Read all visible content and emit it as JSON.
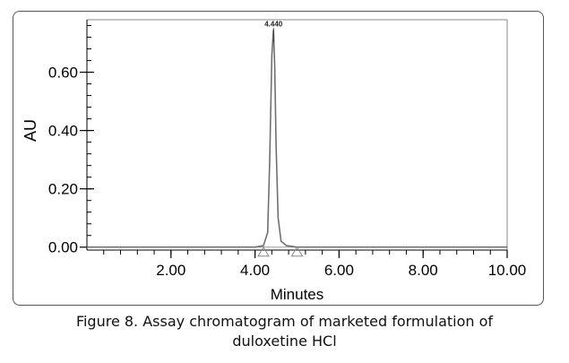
{
  "chart_data": {
    "type": "line",
    "title": "",
    "xlabel": "Minutes",
    "ylabel": "AU",
    "xlim": [
      0,
      10
    ],
    "ylim": [
      -0.01,
      0.78
    ],
    "x_ticks": [
      2,
      4,
      6,
      8,
      10
    ],
    "x_tick_labels": [
      "2.00",
      "4.00",
      "6.00",
      "8.00",
      "10.00"
    ],
    "y_ticks": [
      0,
      0.2,
      0.4,
      0.6
    ],
    "y_tick_labels": [
      "0.00",
      "0.20",
      "0.40",
      "0.60"
    ],
    "grid": false,
    "series": [
      {
        "x": [
          0,
          4.0,
          4.2,
          4.3,
          4.35,
          4.4,
          4.44,
          4.47,
          4.5,
          4.55,
          4.62,
          4.75,
          5.0,
          10.0
        ],
        "y": [
          0,
          0,
          0.005,
          0.05,
          0.3,
          0.66,
          0.745,
          0.62,
          0.35,
          0.1,
          0.02,
          0.005,
          0,
          0
        ]
      }
    ],
    "peak_label": {
      "x": 4.44,
      "y": 0.745,
      "text": "4.440"
    },
    "integration_marks": [
      4.2,
      5.0
    ]
  },
  "caption": {
    "line1": "Figure 8. Assay chromatogram of marketed formulation of",
    "line2": "duloxetine HCl"
  },
  "colors": {
    "trace": "#707070",
    "axis": "#000000",
    "baseline": "#9a9a9a"
  }
}
